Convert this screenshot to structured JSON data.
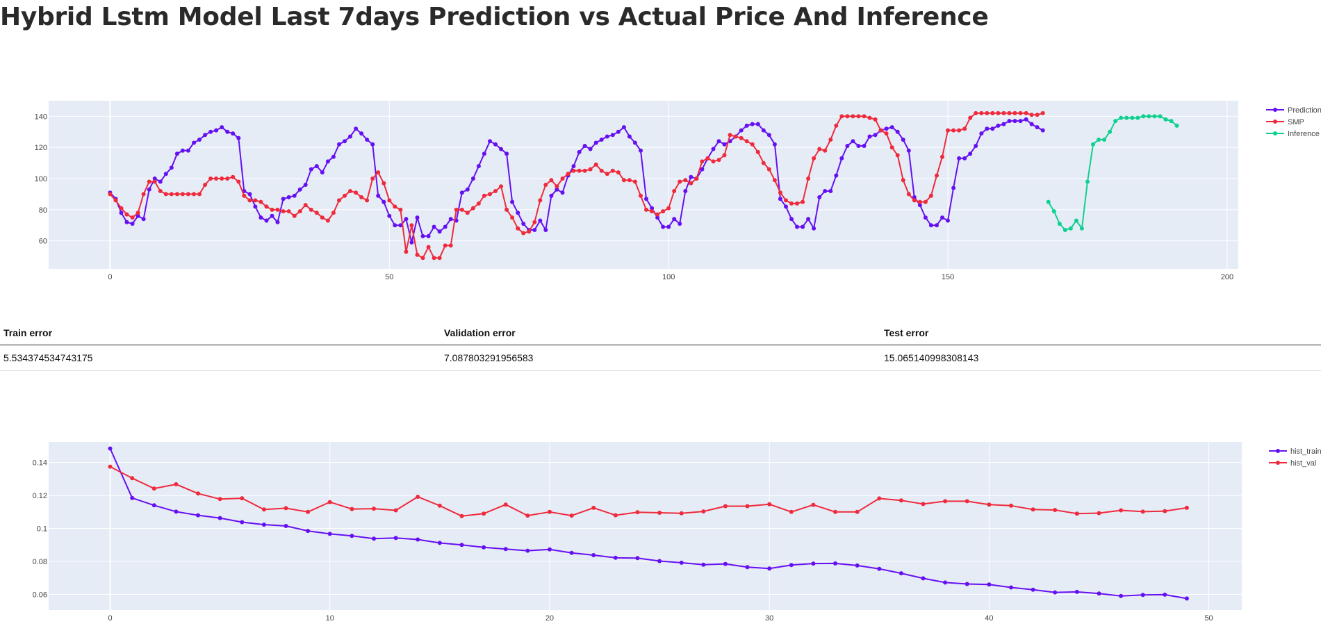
{
  "page": {
    "title": "Hybrid Lstm Model Last 7days Prediction vs Actual Price And Inference"
  },
  "errors": {
    "headers": [
      "Train error",
      "Validation error",
      "Test error"
    ],
    "values": [
      "5.534374534743175",
      "7.087803291956583",
      "15.065140998308143"
    ]
  },
  "chart_data": [
    {
      "type": "line",
      "title": "",
      "xlabel": "",
      "ylabel": "",
      "xlim": [
        -11,
        202
      ],
      "ylim": [
        42,
        150
      ],
      "x_ticks": [
        0,
        50,
        100,
        150,
        200
      ],
      "y_ticks": [
        60,
        80,
        100,
        120,
        140
      ],
      "legend_position": "top-right",
      "series": [
        {
          "name": "Prediction",
          "color": "#6610f2",
          "x_start": 0,
          "values": [
            91,
            87,
            78,
            72,
            71,
            76,
            74,
            93,
            100,
            98,
            103,
            107,
            116,
            118,
            118,
            123,
            125,
            128,
            130,
            131,
            133,
            130,
            129,
            126,
            92,
            90,
            82,
            75,
            73,
            76,
            72,
            87,
            88,
            89,
            93,
            96,
            106,
            108,
            104,
            111,
            114,
            122,
            124,
            127,
            132,
            129,
            125,
            122,
            89,
            85,
            76,
            70,
            70,
            74,
            59,
            75,
            63,
            63,
            69,
            66,
            69,
            74,
            73,
            91,
            93,
            100,
            108,
            116,
            124,
            122,
            119,
            116,
            85,
            78,
            71,
            67,
            67,
            73,
            67,
            89,
            93,
            91,
            102,
            108,
            117,
            121,
            119,
            123,
            125,
            127,
            128,
            130,
            133,
            127,
            123,
            118,
            87,
            81,
            75,
            69,
            69,
            74,
            71,
            92,
            101,
            100,
            106,
            113,
            119,
            124,
            122,
            124,
            127,
            131,
            134,
            135,
            135,
            131,
            128,
            122,
            87,
            82,
            74,
            69,
            69,
            74,
            68,
            88,
            92,
            92,
            102,
            113,
            121,
            124,
            121,
            121,
            127,
            128,
            131,
            132,
            133,
            130,
            125,
            118,
            88,
            83,
            75,
            70,
            70,
            75,
            73,
            94,
            113,
            113,
            116,
            121,
            129,
            132,
            132,
            134,
            135,
            137,
            137,
            137,
            138,
            135,
            133,
            131
          ]
        },
        {
          "name": "SMP",
          "color": "#ef2a3c",
          "x_start": 0,
          "values": [
            90,
            86,
            81,
            77,
            75,
            78,
            90,
            98,
            98,
            92,
            90,
            90,
            90,
            90,
            90,
            90,
            90,
            96,
            100,
            100,
            100,
            100,
            101,
            98,
            89,
            86,
            86,
            85,
            82,
            80,
            80,
            79,
            79,
            76,
            79,
            83,
            80,
            78,
            75,
            73,
            78,
            86,
            89,
            92,
            91,
            88,
            86,
            100,
            104,
            97,
            86,
            82,
            80,
            53,
            70,
            51,
            49,
            56,
            49,
            49,
            57,
            57,
            80,
            80,
            78,
            81,
            84,
            89,
            90,
            92,
            95,
            80,
            75,
            68,
            65,
            66,
            72,
            86,
            96,
            99,
            95,
            100,
            103,
            105,
            105,
            105,
            106,
            109,
            105,
            103,
            105,
            104,
            99,
            99,
            98,
            89,
            80,
            79,
            77,
            79,
            81,
            92,
            98,
            99,
            97,
            100,
            111,
            113,
            111,
            112,
            115,
            128,
            127,
            126,
            124,
            122,
            117,
            110,
            106,
            99,
            91,
            86,
            84,
            84,
            85,
            100,
            113,
            119,
            118,
            125,
            134,
            140,
            140,
            140,
            140,
            140,
            139,
            138,
            131,
            129,
            120,
            115,
            99,
            90,
            86,
            85,
            85,
            89,
            102,
            114,
            131,
            131,
            131,
            132,
            139,
            142,
            142,
            142,
            142,
            142,
            142,
            142,
            142,
            142,
            142,
            141,
            141,
            142
          ]
        },
        {
          "name": "Inference",
          "color": "#0fd18f",
          "x_start": 168,
          "values": [
            85,
            79,
            71,
            67,
            68,
            73,
            68,
            98,
            122,
            125,
            125,
            130,
            137,
            139,
            139,
            139,
            139,
            140,
            140,
            140,
            140,
            138,
            137,
            134
          ]
        }
      ]
    },
    {
      "type": "line",
      "title": "",
      "xlabel": "",
      "ylabel": "",
      "xlim": [
        -2.8,
        51.5
      ],
      "ylim": [
        0.0505,
        0.1525
      ],
      "x_ticks": [
        0,
        10,
        20,
        30,
        40,
        50
      ],
      "y_ticks": [
        0.06,
        0.08,
        0.1,
        0.12,
        0.14
      ],
      "y_tick_labels": [
        "0.06",
        "0.08",
        "0.1",
        "0.12",
        "0.14"
      ],
      "legend_position": "top-right",
      "series": [
        {
          "name": "hist_train",
          "color": "#6610f2",
          "x_start": 0,
          "values": [
            0.1485,
            0.1185,
            0.114,
            0.1102,
            0.108,
            0.1063,
            0.1038,
            0.1023,
            0.1015,
            0.0985,
            0.0967,
            0.0955,
            0.0938,
            0.0942,
            0.0933,
            0.0912,
            0.09,
            0.0885,
            0.0875,
            0.0865,
            0.0873,
            0.0852,
            0.0838,
            0.0822,
            0.082,
            0.0802,
            0.0792,
            0.078,
            0.0785,
            0.0765,
            0.0757,
            0.0778,
            0.0787,
            0.0788,
            0.0775,
            0.0755,
            0.0728,
            0.0697,
            0.0672,
            0.0663,
            0.066,
            0.0642,
            0.0628,
            0.0612,
            0.0615,
            0.0605,
            0.059,
            0.0597,
            0.0598,
            0.0575
          ]
        },
        {
          "name": "hist_val",
          "color": "#ef2a3c",
          "x_start": 0,
          "values": [
            0.1375,
            0.1305,
            0.1242,
            0.1268,
            0.1212,
            0.1178,
            0.1183,
            0.1115,
            0.1123,
            0.11,
            0.116,
            0.1118,
            0.112,
            0.111,
            0.1192,
            0.1138,
            0.1075,
            0.109,
            0.1145,
            0.1078,
            0.11,
            0.1078,
            0.1125,
            0.108,
            0.1098,
            0.1095,
            0.1092,
            0.1103,
            0.1135,
            0.1135,
            0.1147,
            0.11,
            0.1143,
            0.11,
            0.11,
            0.1182,
            0.117,
            0.1148,
            0.1165,
            0.1165,
            0.1145,
            0.1138,
            0.1115,
            0.1112,
            0.109,
            0.1093,
            0.111,
            0.1102,
            0.1105,
            0.1125
          ]
        }
      ]
    }
  ]
}
